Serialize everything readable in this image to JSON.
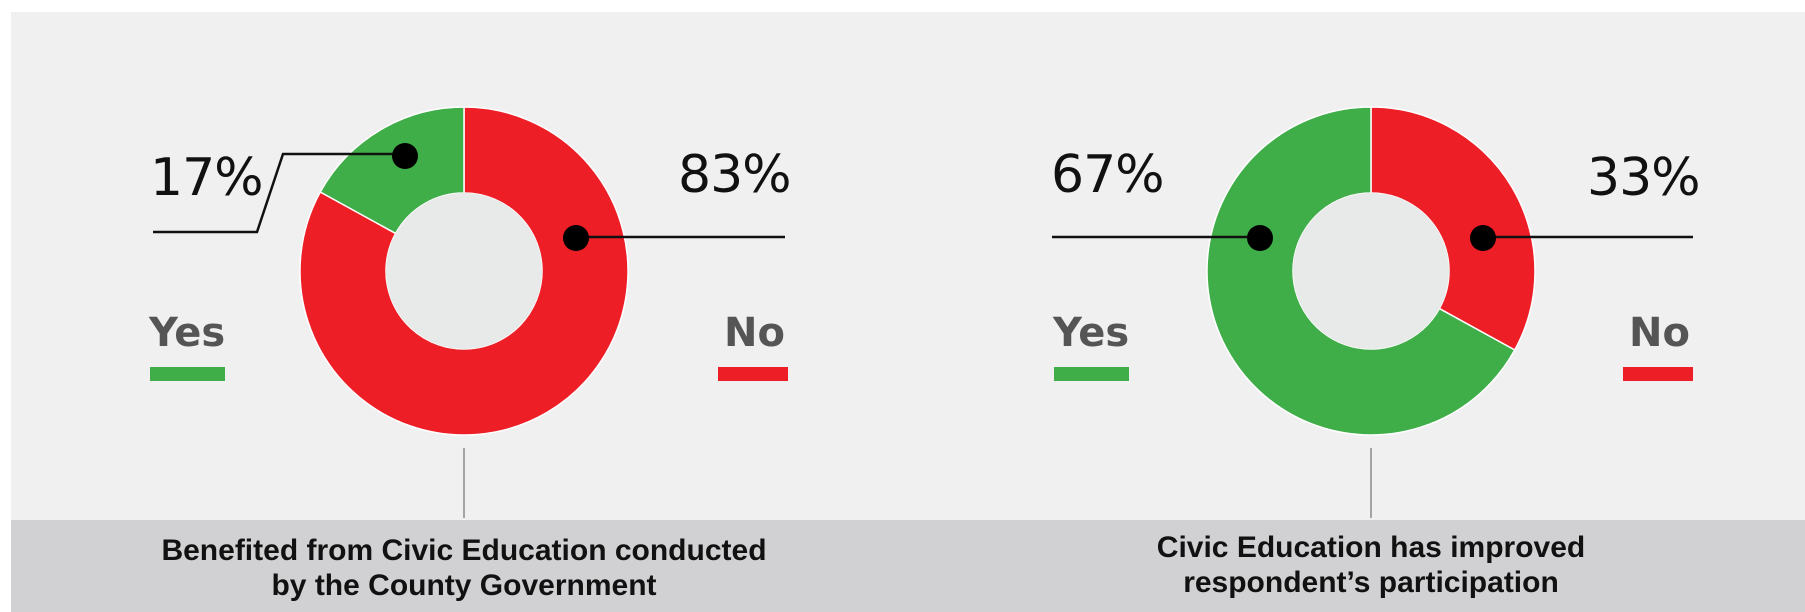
{
  "colors": {
    "yes": "#3fad48",
    "no": "#ee1e26",
    "hole": "#e8e9e9",
    "background": "#f0f0f0",
    "footer": "#d1d0d2"
  },
  "chart_data": [
    {
      "type": "pie",
      "title_lines": [
        "Benefited from Civic Education conducted",
        "by the County Government"
      ],
      "categories": [
        "Yes",
        "No"
      ],
      "values": [
        17,
        83
      ],
      "data_labels": [
        "17%",
        "83%"
      ]
    },
    {
      "type": "pie",
      "title_lines": [
        "Civic Education has improved",
        "respondent’s participation"
      ],
      "categories": [
        "Yes",
        "No"
      ],
      "values": [
        67,
        33
      ],
      "data_labels": [
        "67%",
        "33%"
      ]
    }
  ]
}
